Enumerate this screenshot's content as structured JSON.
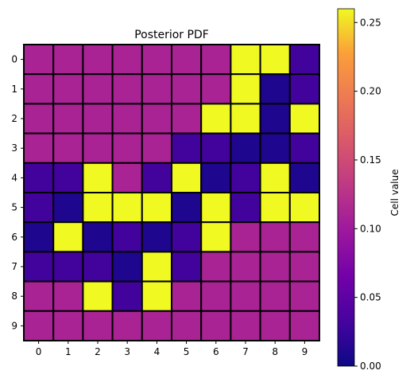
{
  "chart_data": {
    "type": "heatmap",
    "title": "Posterior PDF",
    "x_ticks": [
      "0",
      "1",
      "2",
      "3",
      "4",
      "5",
      "6",
      "7",
      "8",
      "9"
    ],
    "y_ticks": [
      "0",
      "1",
      "2",
      "3",
      "4",
      "5",
      "6",
      "7",
      "8",
      "9"
    ],
    "values": [
      [
        0.11,
        0.11,
        0.11,
        0.11,
        0.11,
        0.11,
        0.11,
        0.26,
        0.26,
        0.03
      ],
      [
        0.11,
        0.11,
        0.11,
        0.11,
        0.11,
        0.11,
        0.11,
        0.26,
        0.01,
        0.03
      ],
      [
        0.11,
        0.11,
        0.11,
        0.11,
        0.11,
        0.11,
        0.26,
        0.26,
        0.01,
        0.26
      ],
      [
        0.11,
        0.11,
        0.11,
        0.11,
        0.11,
        0.03,
        0.03,
        0.01,
        0.01,
        0.03
      ],
      [
        0.03,
        0.03,
        0.26,
        0.11,
        0.03,
        0.26,
        0.01,
        0.03,
        0.26,
        0.01
      ],
      [
        0.03,
        0.01,
        0.26,
        0.26,
        0.26,
        0.01,
        0.26,
        0.03,
        0.26,
        0.26
      ],
      [
        0.01,
        0.26,
        0.01,
        0.03,
        0.01,
        0.03,
        0.26,
        0.11,
        0.11,
        0.11
      ],
      [
        0.03,
        0.03,
        0.03,
        0.01,
        0.26,
        0.03,
        0.11,
        0.11,
        0.11,
        0.11
      ],
      [
        0.11,
        0.11,
        0.26,
        0.03,
        0.26,
        0.11,
        0.11,
        0.11,
        0.11,
        0.11
      ],
      [
        0.11,
        0.11,
        0.11,
        0.11,
        0.11,
        0.11,
        0.11,
        0.11,
        0.11,
        0.11
      ]
    ],
    "colorscale": "plasma",
    "vmin": 0,
    "vmax": 0.26,
    "colorbar": {
      "label": "Cell value",
      "ticks": [
        0.0,
        0.05,
        0.1,
        0.15,
        0.2,
        0.25
      ],
      "tick_labels": [
        "0.00",
        "0.05",
        "0.10",
        "0.15",
        "0.20",
        "0.25"
      ]
    },
    "cell_border_color": "#000000"
  }
}
